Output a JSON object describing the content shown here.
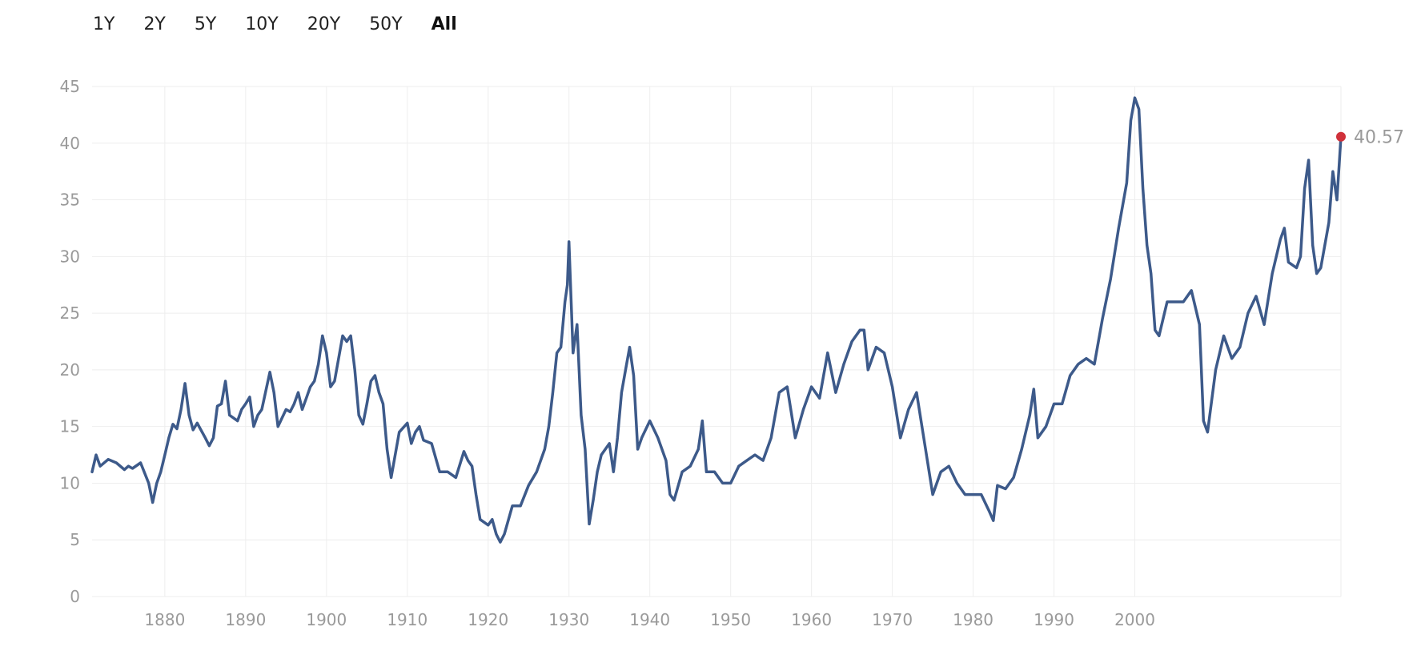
{
  "range_buttons": [
    {
      "label": "1Y",
      "active": false
    },
    {
      "label": "2Y",
      "active": false
    },
    {
      "label": "5Y",
      "active": false
    },
    {
      "label": "10Y",
      "active": false
    },
    {
      "label": "20Y",
      "active": false
    },
    {
      "label": "50Y",
      "active": false
    },
    {
      "label": "All",
      "active": true
    }
  ],
  "colors": {
    "line": "#3d5a8a",
    "last_point": "#d0313a",
    "grid": "#eeeeee",
    "tick_text": "#9a9a9a"
  },
  "chart_data": {
    "type": "line",
    "title": "",
    "xlabel": "",
    "ylabel": "",
    "xlim": [
      1871,
      2025.5
    ],
    "ylim": [
      0,
      45
    ],
    "grid": true,
    "legend": "none",
    "x_ticks": [
      "1880",
      "1890",
      "1900",
      "1910",
      "1920",
      "1930",
      "1940",
      "1950",
      "1960",
      "1970",
      "1980",
      "1990",
      "2000"
    ],
    "y_ticks": [
      "0",
      "5",
      "10",
      "15",
      "20",
      "25",
      "30",
      "35",
      "40",
      "45"
    ],
    "last_value_label": "40.57",
    "series": [
      {
        "x": [
          1871,
          1871.5,
          1872,
          1873,
          1874,
          1875,
          1875.5,
          1876,
          1877,
          1878,
          1878.5,
          1879,
          1879.5,
          1880,
          1880.5,
          1881,
          1881.5,
          1882,
          1882.5,
          1883,
          1883.5,
          1884,
          1885,
          1885.5,
          1886,
          1886.5,
          1887,
          1887.5,
          1888,
          1889,
          1889.5,
          1890,
          1890.5,
          1891,
          1891.5,
          1892,
          1893,
          1893.5,
          1894,
          1895,
          1895.5,
          1896,
          1896.5,
          1897,
          1897.5,
          1898,
          1898.5,
          1899,
          1899.5,
          1900,
          1900.5,
          1901,
          1902,
          1902.5,
          1903,
          1903.5,
          1904,
          1904.5,
          1905,
          1905.5,
          1906,
          1906.5,
          1907,
          1907.5,
          1908,
          1909,
          1910,
          1910.5,
          1911,
          1911.5,
          1912,
          1913,
          1914,
          1915,
          1916,
          1917,
          1917.5,
          1918,
          1918.5,
          1919,
          1920,
          1920.5,
          1921,
          1921.5,
          1922,
          1923,
          1924,
          1925,
          1926,
          1927,
          1927.5,
          1928,
          1928.5,
          1929,
          1929.5,
          1929.8,
          1930,
          1930.5,
          1931,
          1931.5,
          1932,
          1932.5,
          1933,
          1933.5,
          1934,
          1935,
          1935.5,
          1936,
          1936.5,
          1937,
          1937.5,
          1938,
          1938.5,
          1939,
          1940,
          1941,
          1942,
          1942.5,
          1943,
          1944,
          1945,
          1946,
          1946.5,
          1947,
          1948,
          1949,
          1950,
          1951,
          1952,
          1953,
          1954,
          1955,
          1956,
          1957,
          1958,
          1959,
          1960,
          1961,
          1962,
          1963,
          1964,
          1965,
          1966,
          1966.5,
          1967,
          1968,
          1969,
          1970,
          1971,
          1972,
          1973,
          1974,
          1975,
          1976,
          1977,
          1978,
          1979,
          1980,
          1981,
          1982,
          1982.5,
          1983,
          1984,
          1985,
          1986,
          1987,
          1987.5,
          1988,
          1989,
          1990,
          1991,
          1992,
          1993,
          1994,
          1995,
          1996,
          1997,
          1998,
          1999,
          1999.5,
          2000,
          2000.5,
          2001,
          2001.5,
          2002,
          2002.5,
          2003,
          2004,
          2005,
          2006,
          2007,
          2008,
          2008.5,
          2009,
          2010,
          2011,
          2012,
          2013,
          2014,
          2015,
          2016,
          2017,
          2018,
          2018.5,
          2019,
          2020,
          2020.5,
          2021,
          2021.5,
          2022,
          2022.5,
          2023,
          2024,
          2024.5,
          2025,
          2025.5
        ],
        "values": [
          11.0,
          12.5,
          11.5,
          12.1,
          11.8,
          11.2,
          11.5,
          11.3,
          11.8,
          10.0,
          8.3,
          10.0,
          11.0,
          12.5,
          14.0,
          15.2,
          14.8,
          16.5,
          18.8,
          16.0,
          14.7,
          15.3,
          14.0,
          13.3,
          14.0,
          16.8,
          17.0,
          19.0,
          16.0,
          15.5,
          16.5,
          17.0,
          17.6,
          15.0,
          16.0,
          16.5,
          19.8,
          18.0,
          15.0,
          16.5,
          16.3,
          17.0,
          18.0,
          16.5,
          17.5,
          18.5,
          19.0,
          20.5,
          23.0,
          21.5,
          18.5,
          19.0,
          23.0,
          22.5,
          23.0,
          20.0,
          16.0,
          15.2,
          17.0,
          19.0,
          19.5,
          18.0,
          17.0,
          13.0,
          10.5,
          14.5,
          15.3,
          13.5,
          14.5,
          15.0,
          13.8,
          13.5,
          11.0,
          11.0,
          10.5,
          12.8,
          12.0,
          11.5,
          9.0,
          6.8,
          6.3,
          6.8,
          5.5,
          4.8,
          5.5,
          8.0,
          8.0,
          9.8,
          11.0,
          13.0,
          15.0,
          18.0,
          21.5,
          22.0,
          26.0,
          27.5,
          31.3,
          21.5,
          24.0,
          16.0,
          13.0,
          6.4,
          8.5,
          11.0,
          12.5,
          13.5,
          11.0,
          14.0,
          18.0,
          20.0,
          22.0,
          19.5,
          13.0,
          14.0,
          15.5,
          14.0,
          12.0,
          9.0,
          8.5,
          11.0,
          11.5,
          13.0,
          15.5,
          11.0,
          11.0,
          10.0,
          10.0,
          11.5,
          12.0,
          12.5,
          12.0,
          14.0,
          18.0,
          18.5,
          14.0,
          16.5,
          18.5,
          17.5,
          21.5,
          18.0,
          20.5,
          22.5,
          23.5,
          23.5,
          20.0,
          22.0,
          21.5,
          18.5,
          14.0,
          16.5,
          18.0,
          13.5,
          9.0,
          11.0,
          11.5,
          10.0,
          9.0,
          9.0,
          9.0,
          7.5,
          6.7,
          9.8,
          9.5,
          10.5,
          13.0,
          16.0,
          18.3,
          14.0,
          15.0,
          17.0,
          17.0,
          19.5,
          20.5,
          21.0,
          20.5,
          24.5,
          28.0,
          32.5,
          36.5,
          42.0,
          44.0,
          43.0,
          36.0,
          31.0,
          28.5,
          23.5,
          23.0,
          26.0,
          26.0,
          26.0,
          27.0,
          24.0,
          15.5,
          14.5,
          20.0,
          23.0,
          21.0,
          22.0,
          25.0,
          26.5,
          24.0,
          28.5,
          31.5,
          32.5,
          29.5,
          29.0,
          30.0,
          36.0,
          38.5,
          31.0,
          28.5,
          29.0,
          33.0,
          37.5,
          35.0,
          40.57
        ]
      }
    ]
  }
}
